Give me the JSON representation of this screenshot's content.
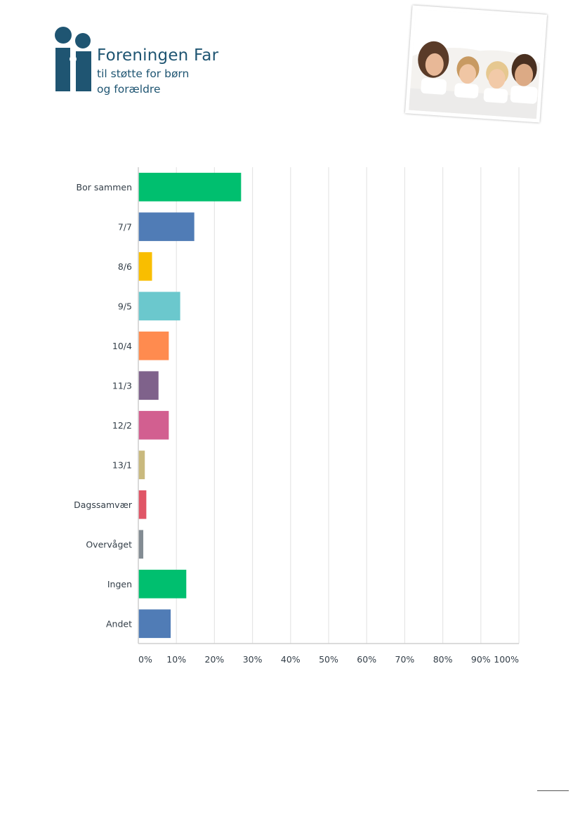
{
  "header": {
    "logo_name": "Foreningen Far",
    "logo_tagline_1": "til støtte for børn",
    "logo_tagline_2": "og forældre",
    "logo_color": "#1f5572"
  },
  "chart_data": {
    "type": "bar",
    "orientation": "horizontal",
    "title": "",
    "xlabel": "",
    "ylabel": "",
    "xlim": [
      0,
      100
    ],
    "x_ticks": [
      "0%",
      "10%",
      "20%",
      "30%",
      "40%",
      "50%",
      "60%",
      "70%",
      "80%",
      "90%",
      "100%"
    ],
    "grid": "vertical",
    "legend": "none",
    "categories": [
      "Bor sammen",
      "7/7",
      "8/6",
      "9/5",
      "10/4",
      "11/3",
      "12/2",
      "13/1",
      "Dagssamvær",
      "Overvåget",
      "Ingen",
      "Andet"
    ],
    "values": [
      27,
      14.7,
      3.6,
      11,
      8,
      5.3,
      8,
      1.7,
      2.1,
      1.3,
      12.6,
      8.5
    ],
    "colors": [
      "#00bf6f",
      "#507cb6",
      "#f9be00",
      "#6bc8cd",
      "#ff8b4f",
      "#7f628b",
      "#d25f90",
      "#c9b97e",
      "#e05566",
      "#838c93",
      "#00bf6f",
      "#507cb6"
    ]
  }
}
